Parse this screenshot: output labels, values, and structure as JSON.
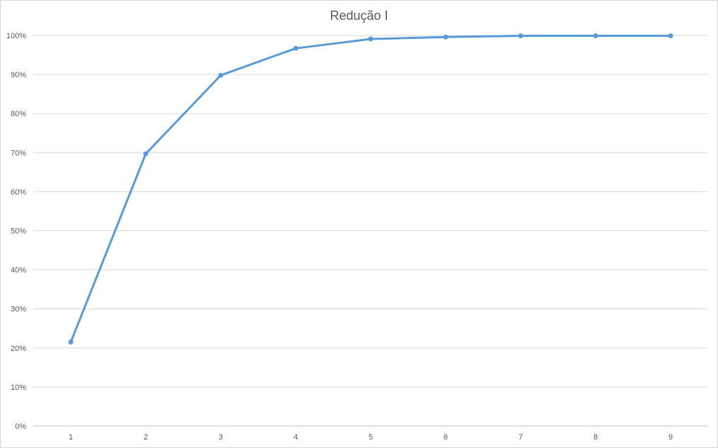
{
  "chart_data": {
    "type": "line",
    "title": "Redução I",
    "xlabel": "",
    "ylabel": "",
    "categories": [
      "1",
      "2",
      "3",
      "4",
      "5",
      "6",
      "7",
      "8",
      "9"
    ],
    "series": [
      {
        "values": [
          21.5,
          69.7,
          89.8,
          96.7,
          99.1,
          99.6,
          99.9,
          99.9,
          99.9
        ]
      }
    ],
    "ylim": [
      0,
      100
    ],
    "yticks": [
      "0%",
      "10%",
      "20%",
      "30%",
      "40%",
      "50%",
      "60%",
      "70%",
      "80%",
      "90%",
      "100%"
    ],
    "grid": true,
    "legend": "none",
    "series_color": "#5b9bd5",
    "grid_color": "#d9d9d9",
    "text_color": "#595959"
  }
}
